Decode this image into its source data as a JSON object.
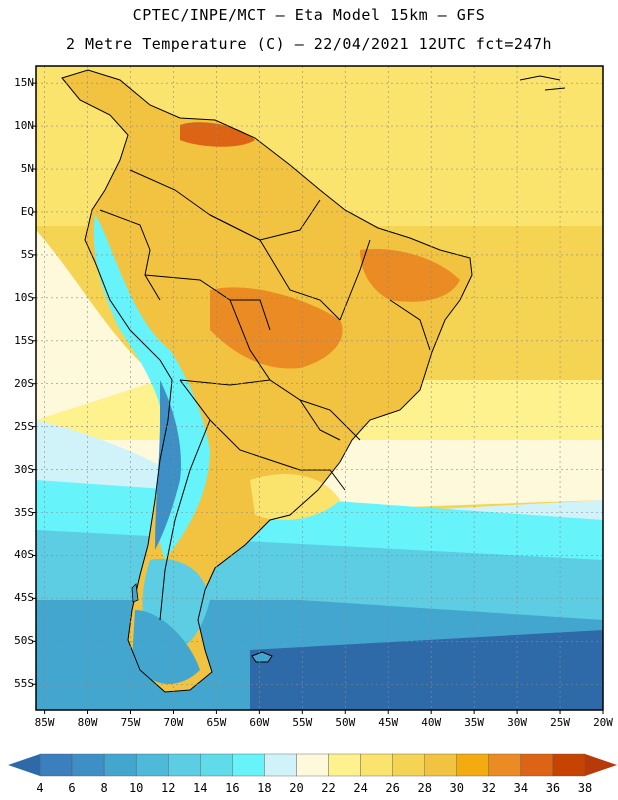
{
  "header": {
    "line1": "CPTEC/INPE/MCT –  Eta Model 15km – GFS",
    "line2": "2 Metre Temperature (C) – 22/04/2021 12UTC fct=247h"
  },
  "map": {
    "region": "South America",
    "lat_labels": [
      "15N",
      "10N",
      "5N",
      "EQ",
      "5S",
      "10S",
      "15S",
      "20S",
      "25S",
      "30S",
      "35S",
      "40S",
      "45S",
      "50S",
      "55S"
    ],
    "lon_labels": [
      "85W",
      "80W",
      "75W",
      "70W",
      "65W",
      "60W",
      "55W",
      "50W",
      "45W",
      "40W",
      "35W",
      "30W",
      "25W",
      "20W"
    ],
    "lat_range": [
      17,
      -58
    ],
    "lon_range": [
      -86,
      -20
    ]
  },
  "colorbar": {
    "labels": [
      "4",
      "6",
      "8",
      "10",
      "12",
      "14",
      "16",
      "18",
      "20",
      "22",
      "24",
      "26",
      "28",
      "30",
      "32",
      "34",
      "36",
      "38"
    ],
    "colors": [
      "#3b7fbe",
      "#3f8fc7",
      "#43a6cf",
      "#4fb9d9",
      "#5ccde2",
      "#60dbe9",
      "#66f3fa",
      "#cff3f9",
      "#fff9dc",
      "#fdf28e",
      "#fae46d",
      "#f5d454",
      "#f2c340",
      "#f3ab0f",
      "#ea8b23",
      "#dd6414",
      "#c64303"
    ],
    "low_color": "#2f6aa8",
    "high_color": "#b83a0a"
  },
  "colors": {
    "ocean_cold": "#2f6aa8",
    "ocean_mid": "#43a6cf",
    "ocean_cool": "#60dbe9",
    "ocean_warm": "#f5d454",
    "land": "#f2c340",
    "land_hot": "#ea8b23",
    "andes": "#66f3fa",
    "border": "#000000"
  }
}
